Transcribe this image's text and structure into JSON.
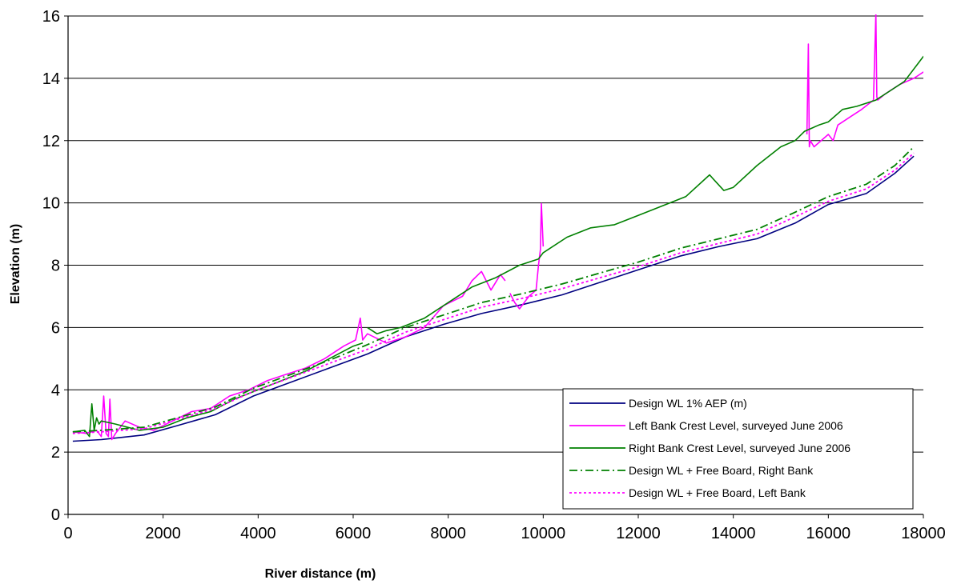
{
  "chart_data": {
    "type": "line",
    "title": "",
    "xlabel": "River distance (m)",
    "ylabel": "Elevation (m)",
    "xlim": [
      0,
      18000
    ],
    "ylim": [
      0,
      16
    ],
    "xticks": [
      0,
      2000,
      4000,
      6000,
      8000,
      10000,
      12000,
      14000,
      16000,
      18000
    ],
    "yticks": [
      0,
      2,
      4,
      6,
      8,
      10,
      12,
      14,
      16
    ],
    "grid": "horizontal",
    "legend_position": "bottom-right",
    "series": [
      {
        "name": "Design WL 1% AEP (m)",
        "color": "#000080",
        "style": "solid",
        "x": [
          100,
          700,
          1600,
          2300,
          3100,
          3900,
          4700,
          5500,
          6300,
          7100,
          7900,
          8700,
          9600,
          10400,
          11200,
          12000,
          12900,
          13700,
          14500,
          15300,
          16000,
          16800,
          17400,
          17800
        ],
        "y": [
          2.35,
          2.4,
          2.55,
          2.85,
          3.2,
          3.8,
          4.25,
          4.7,
          5.15,
          5.7,
          6.1,
          6.45,
          6.75,
          7.05,
          7.45,
          7.85,
          8.3,
          8.6,
          8.85,
          9.35,
          9.95,
          10.3,
          10.95,
          11.5
        ]
      },
      {
        "name": "Left Bank Crest Level, surveyed June 2006",
        "color": "#ff00ff",
        "style": "solid",
        "x": [
          100,
          400,
          600,
          700,
          750,
          800,
          850,
          880,
          920,
          1000,
          1200,
          1500,
          1800,
          2200,
          2600,
          3000,
          3400,
          3800,
          4200,
          4600,
          5000,
          5400,
          5800,
          6050,
          6150,
          6200,
          6300,
          6700,
          7100,
          7500,
          7900,
          8300,
          8500,
          8700,
          8900,
          9100,
          9200,
          9250,
          9300,
          9400,
          9500,
          9700,
          9850,
          9900,
          9940,
          9960,
          10000,
          11000,
          12000,
          13000,
          14000,
          15000,
          15550,
          15580,
          15600,
          15620,
          15700,
          16000,
          16100,
          16200,
          16500,
          16700,
          16950,
          17000,
          17020,
          17040,
          17200,
          17500,
          17800,
          18000,
          18100
        ],
        "y": [
          2.65,
          2.6,
          2.7,
          2.5,
          3.8,
          2.6,
          2.5,
          3.7,
          2.4,
          2.6,
          3.0,
          2.8,
          2.7,
          3.0,
          3.3,
          3.4,
          3.8,
          4.0,
          4.3,
          4.5,
          4.7,
          5.0,
          5.4,
          5.6,
          6.3,
          5.6,
          5.8,
          5.5,
          5.7,
          6.0,
          6.7,
          7.0,
          7.5,
          7.8,
          7.2,
          7.7,
          7.5,
          null,
          7.1,
          6.8,
          6.6,
          7.0,
          7.2,
          8.0,
          8.5,
          9.98,
          8.6,
          null,
          null,
          null,
          null,
          null,
          12.2,
          15.1,
          11.8,
          12.0,
          11.8,
          12.2,
          12.0,
          12.5,
          12.8,
          13.0,
          13.3,
          16.1,
          13.4,
          13.3,
          13.5,
          13.8,
          14.0,
          14.2,
          14.0
        ]
      },
      {
        "name": "Right Bank Crest Level, surveyed June 2006",
        "color": "#008000",
        "style": "solid",
        "x": [
          100,
          350,
          450,
          500,
          550,
          600,
          650,
          700,
          1000,
          1500,
          2000,
          2500,
          3000,
          3500,
          4000,
          4500,
          5000,
          5500,
          6000,
          6200,
          6250,
          6300,
          6500,
          6700,
          7000,
          7500,
          8000,
          8500,
          9000,
          9500,
          9900,
          10000,
          10500,
          11000,
          11500,
          12000,
          12500,
          13000,
          13500,
          13800,
          14000,
          14500,
          15000,
          15300,
          15500,
          15800,
          16000,
          16300,
          16600,
          17000,
          17300,
          17600,
          17900,
          18000,
          18100
        ],
        "y": [
          2.65,
          2.7,
          2.5,
          3.55,
          2.7,
          3.1,
          2.9,
          3.0,
          2.9,
          2.7,
          2.8,
          3.1,
          3.3,
          3.7,
          4.0,
          4.3,
          4.6,
          5.0,
          5.4,
          5.5,
          null,
          6.0,
          5.8,
          5.9,
          6.0,
          6.3,
          6.8,
          7.3,
          7.6,
          8.0,
          8.2,
          8.4,
          8.9,
          9.2,
          9.3,
          9.6,
          9.9,
          10.2,
          10.9,
          10.4,
          10.5,
          11.2,
          11.8,
          12.0,
          12.3,
          12.5,
          12.6,
          13.0,
          13.1,
          13.3,
          13.6,
          13.9,
          14.5,
          14.7,
          14.5
        ]
      },
      {
        "name": "Design WL + Free Board, Right Bank",
        "color": "#008000",
        "style": "dashdot",
        "x": [
          100,
          700,
          1600,
          2300,
          3100,
          3900,
          4700,
          5500,
          6300,
          7100,
          7900,
          8700,
          9600,
          10400,
          11200,
          12000,
          12900,
          13700,
          14500,
          15300,
          16000,
          16800,
          17400,
          17800
        ],
        "y": [
          2.65,
          2.7,
          2.8,
          3.1,
          3.45,
          4.05,
          4.5,
          4.95,
          5.45,
          6.0,
          6.4,
          6.8,
          7.1,
          7.4,
          7.75,
          8.1,
          8.55,
          8.85,
          9.15,
          9.7,
          10.2,
          10.6,
          11.2,
          11.8
        ]
      },
      {
        "name": "Design WL + Free Board, Left Bank",
        "color": "#ff00ff",
        "style": "dotted",
        "x": [
          100,
          700,
          1600,
          2300,
          3100,
          3900,
          4700,
          5500,
          6300,
          7100,
          7900,
          8700,
          9600,
          10400,
          11200,
          12000,
          12900,
          13700,
          14500,
          15300,
          16000,
          16800,
          17400,
          17800
        ],
        "y": [
          2.6,
          2.65,
          2.75,
          3.05,
          3.4,
          3.95,
          4.4,
          4.85,
          5.3,
          5.85,
          6.25,
          6.65,
          6.95,
          7.25,
          7.6,
          7.95,
          8.4,
          8.7,
          9.0,
          9.55,
          10.05,
          10.45,
          11.05,
          11.6
        ]
      }
    ]
  }
}
